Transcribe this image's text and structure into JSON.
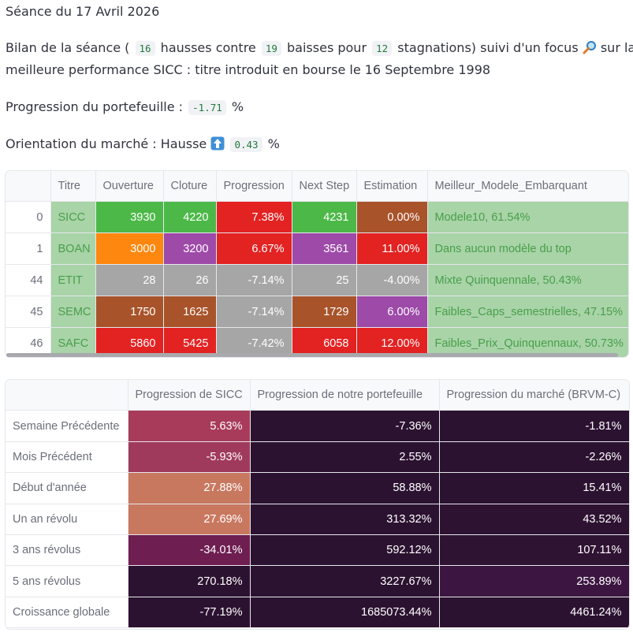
{
  "header": {
    "title": "Séance du 17 Avril 2026",
    "bilan_prefix": "Bilan de la séance (",
    "hausses": "16",
    "hausses_txt": "hausses contre",
    "baisses": "19",
    "baisses_txt": "baisses pour",
    "stagnations": "12",
    "stagnations_txt": "stagnations) suivi d'un focus",
    "focus_suffix": "sur la",
    "line2": "meilleure performance SICC : titre introduit en bourse le 16 Septembre 1998",
    "portfolio_label": "Progression du portefeuille :",
    "portfolio_value": "-1.71",
    "percent": "%",
    "market_label": "Orientation du marché : Hausse",
    "market_value": "0.43",
    "market_percent": "%",
    "icons": [
      "magnifier-icon",
      "up-arrow-icon"
    ]
  },
  "stocks_table": {
    "headers": [
      "",
      "Titre",
      "Ouverture",
      "Cloture",
      "Progression",
      "Next Step",
      "Estimation",
      "Meilleur_Modele_Embarquant"
    ],
    "rows": [
      {
        "idx": "0",
        "titre": "SICC",
        "ouverture": "3930",
        "cloture": "4220",
        "progression": "7.38%",
        "next": "4231",
        "estimation": "0.00%",
        "modele": "Modele10, 61.54%",
        "colors": {
          "ouverture": "#4cb848",
          "cloture": "#4cb848",
          "progression": "#e32222",
          "next": "#4cb848",
          "estimation": "#a8532a"
        }
      },
      {
        "idx": "1",
        "titre": "BOAN",
        "ouverture": "3000",
        "cloture": "3200",
        "progression": "6.67%",
        "next": "3561",
        "estimation": "11.00%",
        "modele": "Dans aucun modèle du top",
        "colors": {
          "ouverture": "#fe870f",
          "cloture": "#9d4aa8",
          "progression": "#e32222",
          "next": "#9d4aa8",
          "estimation": "#e32222"
        }
      },
      {
        "idx": "44",
        "titre": "ETIT",
        "ouverture": "28",
        "cloture": "26",
        "progression": "-7.14%",
        "next": "25",
        "estimation": "-4.00%",
        "modele": "Mixte Quinquennale, 50.43%",
        "colors": {
          "ouverture": "#a6a6a6",
          "cloture": "#a6a6a6",
          "progression": "#a6a6a6",
          "next": "#a6a6a6",
          "estimation": "#a6a6a6"
        }
      },
      {
        "idx": "45",
        "titre": "SEMC",
        "ouverture": "1750",
        "cloture": "1625",
        "progression": "-7.14%",
        "next": "1729",
        "estimation": "6.00%",
        "modele": "Faibles_Caps_semestrielles, 47.15%",
        "colors": {
          "ouverture": "#a8532a",
          "cloture": "#a8532a",
          "progression": "#a6a6a6",
          "next": "#a8532a",
          "estimation": "#9d4aa8"
        }
      },
      {
        "idx": "46",
        "titre": "SAFC",
        "ouverture": "5860",
        "cloture": "5425",
        "progression": "-7.42%",
        "next": "6058",
        "estimation": "12.00%",
        "modele": "Faibles_Prix_Quinquennaux, 50.73%",
        "colors": {
          "ouverture": "#e32222",
          "cloture": "#e32222",
          "progression": "#a6a6a6",
          "next": "#e32222",
          "estimation": "#e32222"
        }
      }
    ],
    "title_bg": "#a8d4a8",
    "title_fg": "#4a9e4a"
  },
  "perf_table": {
    "headers": [
      "",
      "Progression de SICC",
      "Progression de notre portefeuille",
      "Progression du marché (BRVM-C)"
    ],
    "rows": [
      {
        "label": "Semaine Précédente",
        "sicc": "5.63%",
        "portefeuille": "-7.36%",
        "marche": "-1.81%",
        "colors": [
          "#a83b5a",
          "#2c1231",
          "#2c1231"
        ]
      },
      {
        "label": "Mois Précédent",
        "sicc": "-5.93%",
        "portefeuille": "2.55%",
        "marche": "-2.26%",
        "colors": [
          "#a03a5c",
          "#2c1231",
          "#2c1231"
        ]
      },
      {
        "label": "Début d'année",
        "sicc": "27.88%",
        "portefeuille": "58.88%",
        "marche": "15.41%",
        "colors": [
          "#c97860",
          "#2c1231",
          "#2c1231"
        ]
      },
      {
        "label": "Un an révolu",
        "sicc": "27.69%",
        "portefeuille": "313.32%",
        "marche": "43.52%",
        "colors": [
          "#c97860",
          "#2c1231",
          "#2d1232"
        ]
      },
      {
        "label": "3 ans révolus",
        "sicc": "-34.01%",
        "portefeuille": "592.12%",
        "marche": "107.11%",
        "colors": [
          "#6e1e51",
          "#2c1231",
          "#2f1333"
        ]
      },
      {
        "label": "5 ans révolus",
        "sicc": "270.18%",
        "portefeuille": "3227.67%",
        "marche": "253.89%",
        "colors": [
          "#2c1231",
          "#2c1231",
          "#3c1640"
        ]
      },
      {
        "label": "Croissance globale",
        "sicc": "-77.19%",
        "portefeuille": "1685073.44%",
        "marche": "4461.24%",
        "colors": [
          "#2c1231",
          "#2c1231",
          "#2c1231"
        ]
      }
    ]
  }
}
